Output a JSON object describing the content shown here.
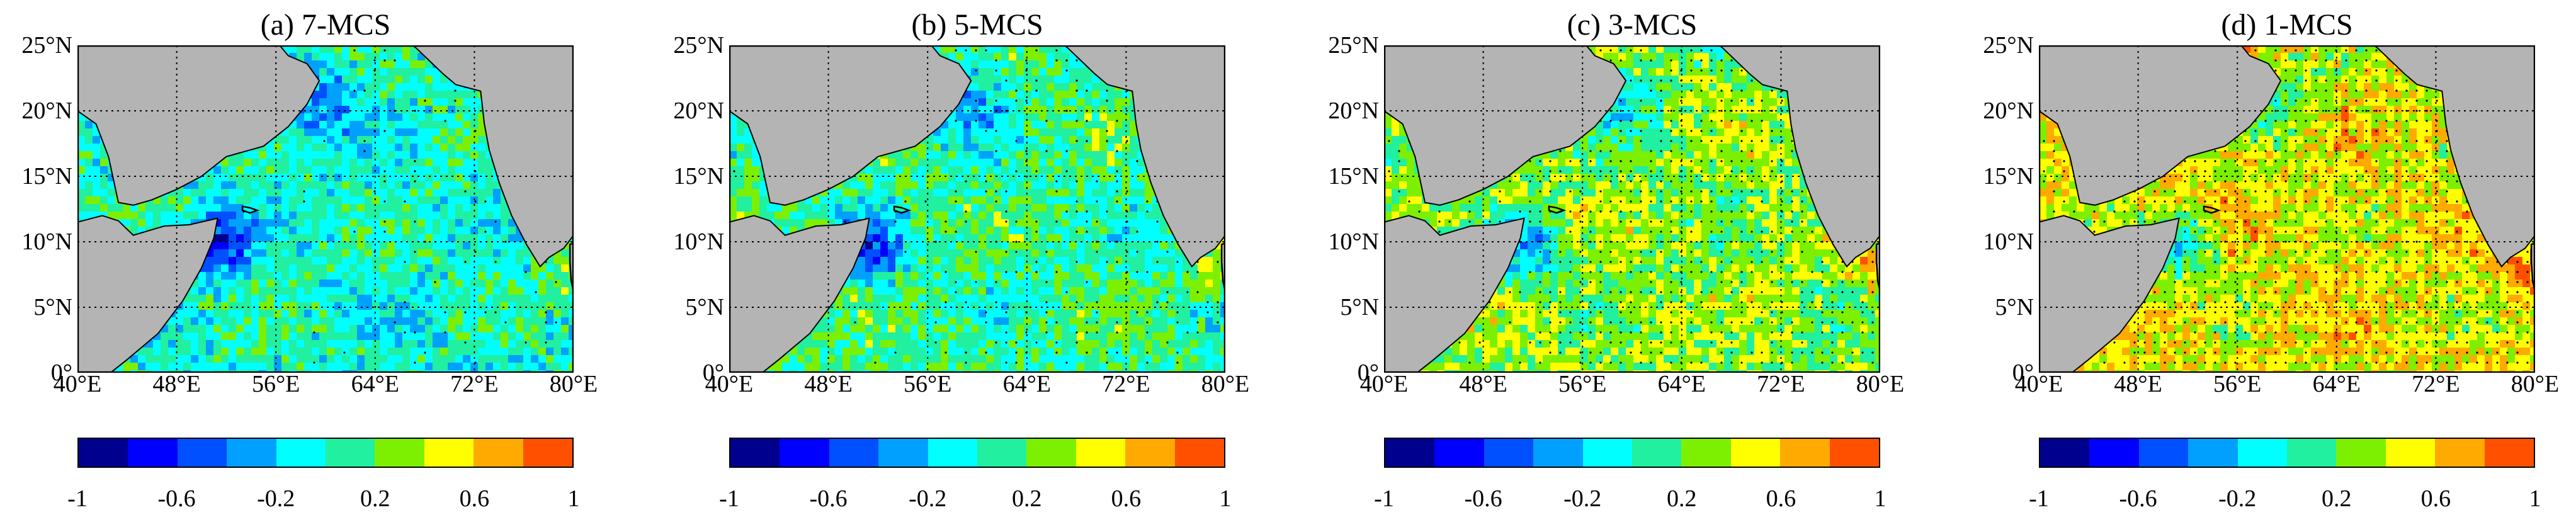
{
  "figure": {
    "colors": {
      "land": "#b4b4b4",
      "palette": [
        "#00008f",
        "#0000ff",
        "#0050ff",
        "#00a0ff",
        "#00ffff",
        "#20f0a0",
        "#7cf000",
        "#ffff00",
        "#ffaa00",
        "#ff5000"
      ]
    },
    "lat_labels": [
      "25°N",
      "20°N",
      "15°N",
      "10°N",
      "5°N",
      "0°"
    ],
    "lon_labels": [
      "40°E",
      "48°E",
      "56°E",
      "64°E",
      "72°E",
      "80°E"
    ],
    "colorbar_labels": [
      "-1",
      "-0.6",
      "-0.2",
      "0.2",
      "0.6",
      "1"
    ],
    "panels": [
      {
        "title": "(a) 7-MCS",
        "level": 0.25
      },
      {
        "title": "(b) 5-MCS",
        "level": 0.35
      },
      {
        "title": "(c) 3-MCS",
        "level": 0.55
      },
      {
        "title": "(d) 1-MCS",
        "level": 0.75
      }
    ]
  }
}
